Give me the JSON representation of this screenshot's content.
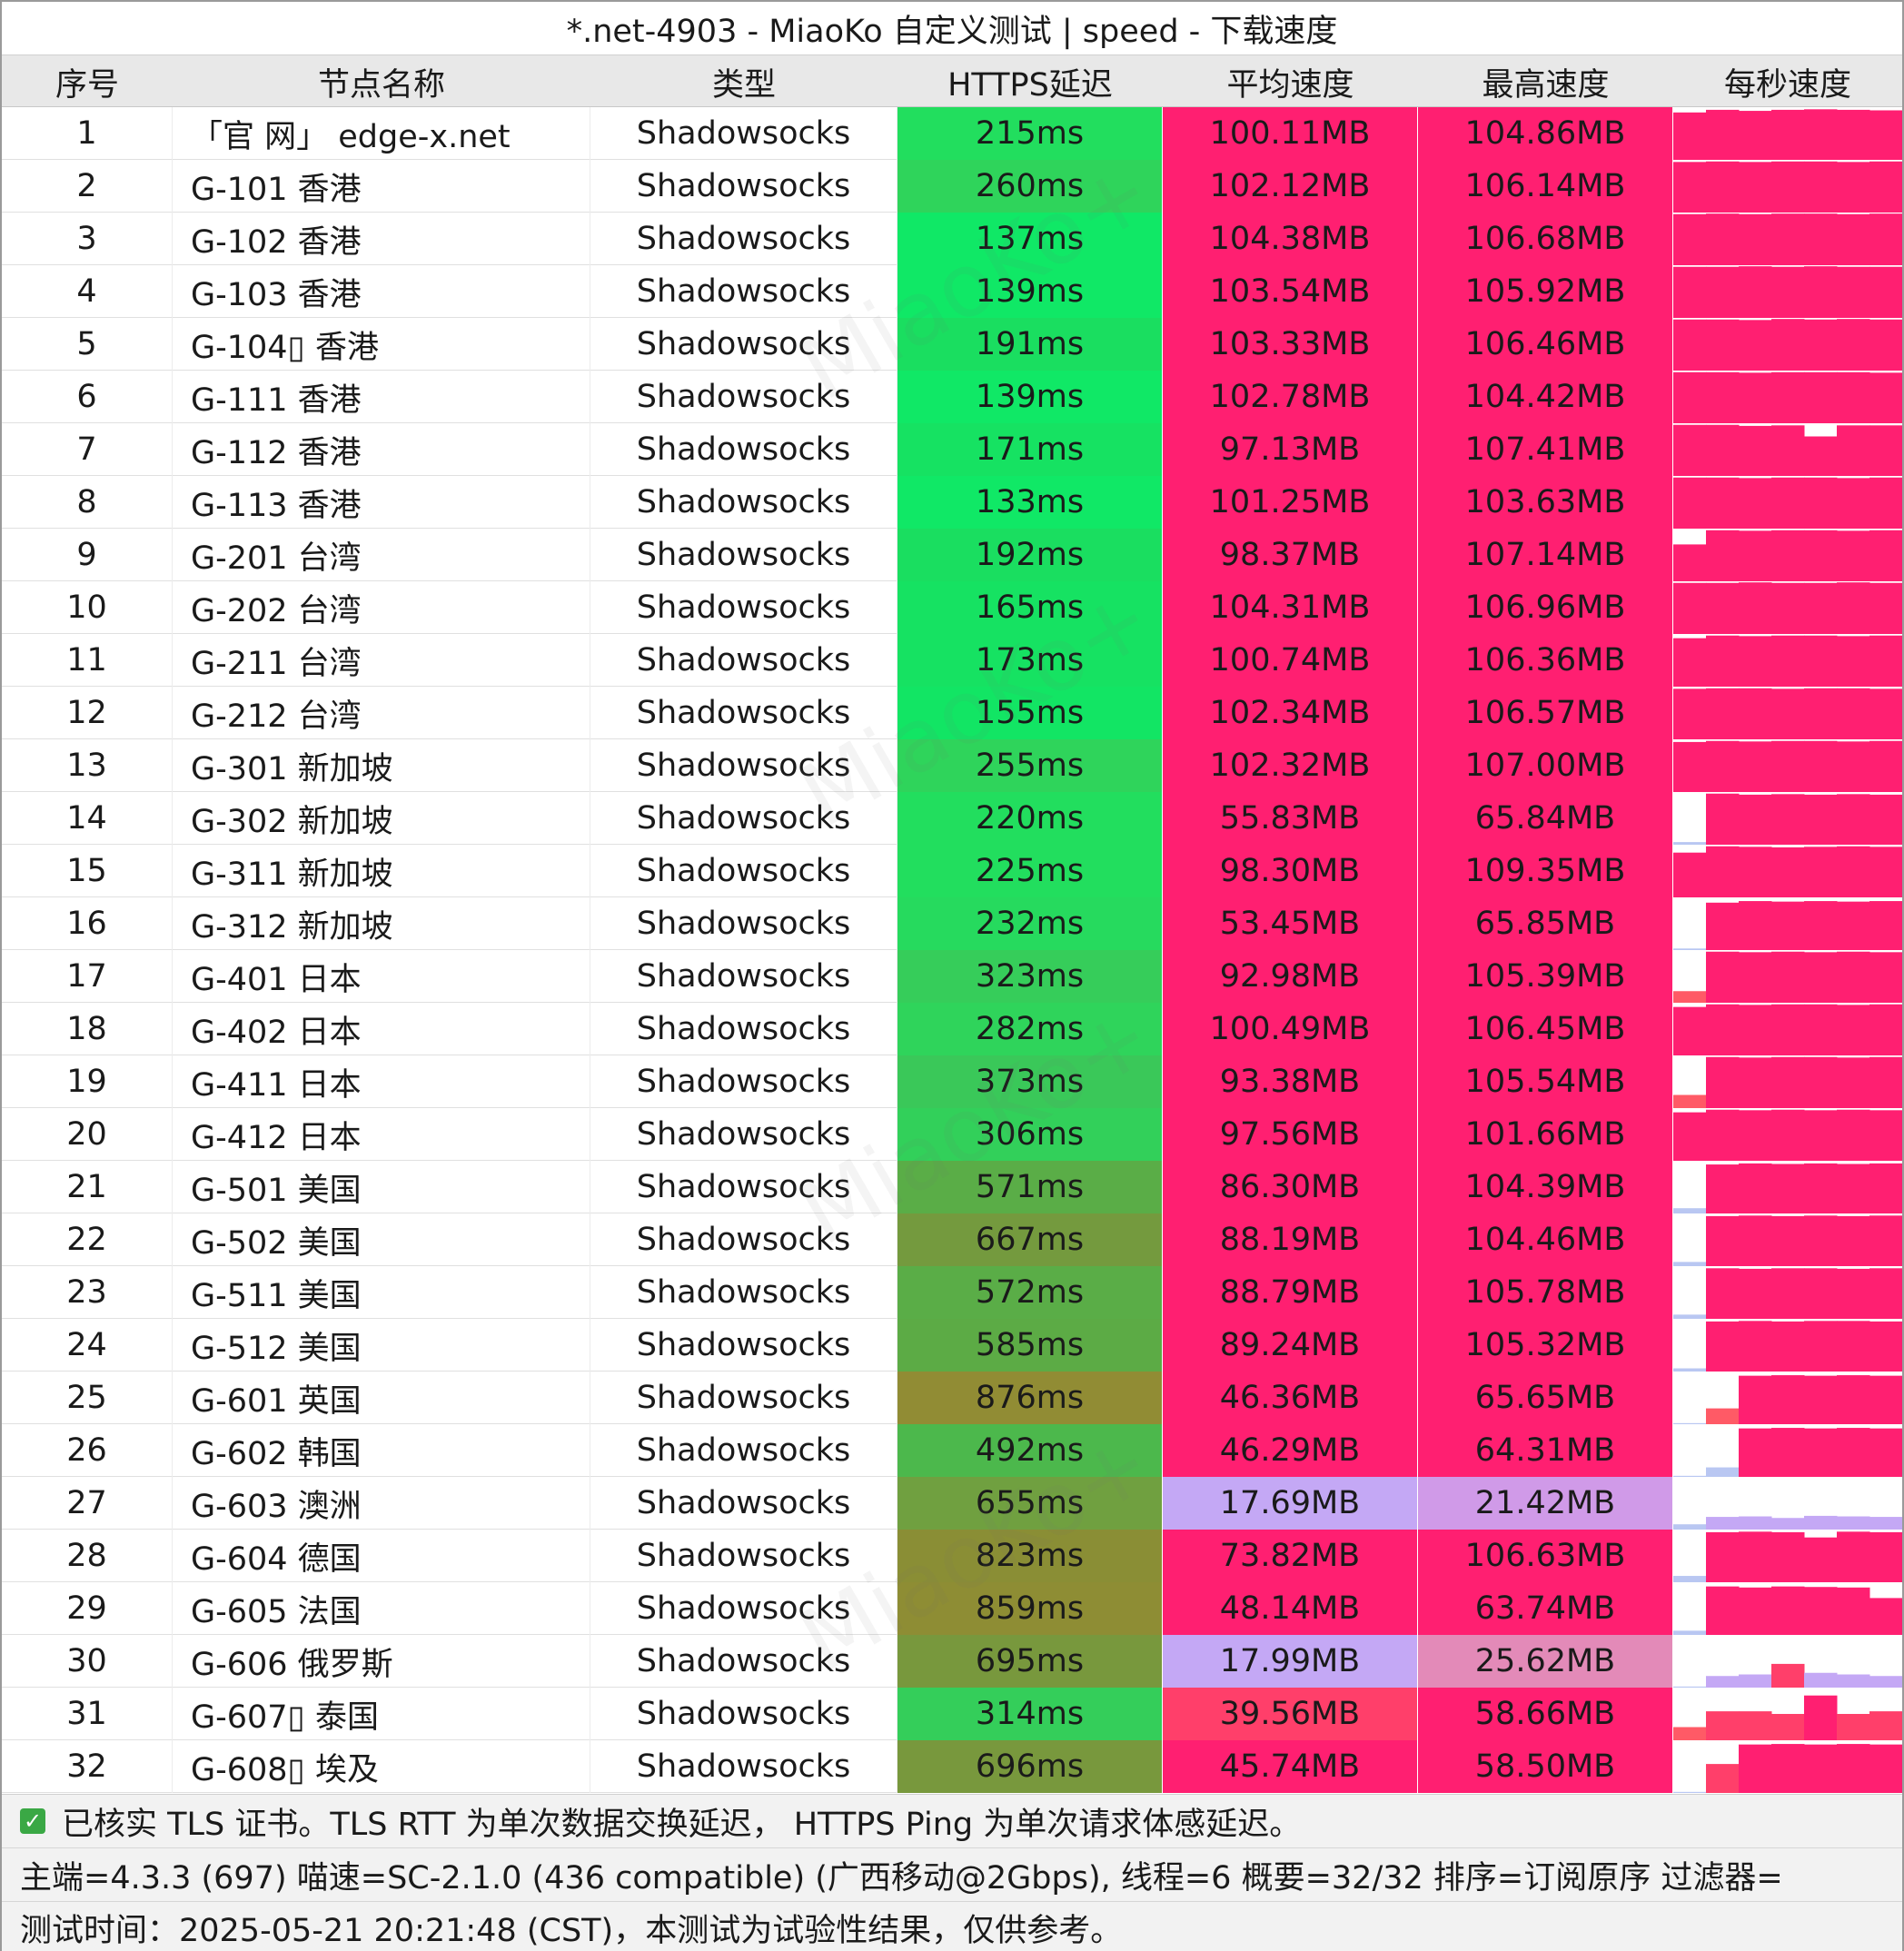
{
  "title": "*.net-4903 - MiaoKo 自定义测试 | speed - 下载速度",
  "watermark": "MiaoKo+",
  "columns": [
    "序号",
    "节点名称",
    "类型",
    "HTTPS延迟",
    "平均速度",
    "最高速度",
    "每秒速度"
  ],
  "colors": {
    "speed_high": "#ff1f71",
    "speed_low": "#c8a6f2",
    "latency_good": "#1bd862",
    "latency_mid": "#4dbb46",
    "latency_bad": "#8c8f33"
  },
  "rows": [
    {
      "id": "1",
      "name": "「官 网」 edge-x.net",
      "type": "Shadowsocks",
      "latency": "215ms",
      "avg": "100.11MB",
      "max": "104.86MB",
      "latency_color": "#22de5e",
      "avg_color": "#ff1f71",
      "max_color": "#ff1f71",
      "sparkline": [
        0.9,
        0.95,
        0.93,
        0.95,
        0.96,
        0.95,
        0.94
      ]
    },
    {
      "id": "2",
      "name": "G-101 香港",
      "type": "Shadowsocks",
      "latency": "260ms",
      "avg": "102.12MB",
      "max": "106.14MB",
      "latency_color": "#2fd45b",
      "avg_color": "#ff1f71",
      "max_color": "#ff1f71",
      "sparkline": [
        0.96,
        0.97,
        0.96,
        0.97,
        0.97,
        0.96,
        0.97
      ]
    },
    {
      "id": "3",
      "name": "G-102 香港",
      "type": "Shadowsocks",
      "latency": "137ms",
      "avg": "104.38MB",
      "max": "106.68MB",
      "latency_color": "#10e866",
      "avg_color": "#ff1f71",
      "max_color": "#ff1f71",
      "sparkline": [
        0.97,
        0.98,
        0.97,
        0.98,
        0.98,
        0.97,
        0.98
      ]
    },
    {
      "id": "4",
      "name": "G-103 香港",
      "type": "Shadowsocks",
      "latency": "139ms",
      "avg": "103.54MB",
      "max": "105.92MB",
      "latency_color": "#10e866",
      "avg_color": "#ff1f71",
      "max_color": "#ff1f71",
      "sparkline": [
        0.97,
        0.97,
        0.98,
        0.97,
        0.98,
        0.97,
        0.97
      ]
    },
    {
      "id": "5",
      "name": "G-104▯ 香港",
      "type": "Shadowsocks",
      "latency": "191ms",
      "avg": "103.33MB",
      "max": "106.46MB",
      "latency_color": "#1ade60",
      "avg_color": "#ff1f71",
      "max_color": "#ff1f71",
      "sparkline": [
        0.97,
        0.97,
        0.96,
        0.98,
        0.97,
        0.98,
        0.97
      ]
    },
    {
      "id": "6",
      "name": "G-111 香港",
      "type": "Shadowsocks",
      "latency": "139ms",
      "avg": "102.78MB",
      "max": "104.42MB",
      "latency_color": "#10e866",
      "avg_color": "#ff1f71",
      "max_color": "#ff1f71",
      "sparkline": [
        0.97,
        0.97,
        0.96,
        0.97,
        0.97,
        0.97,
        0.96
      ]
    },
    {
      "id": "7",
      "name": "G-112 香港",
      "type": "Shadowsocks",
      "latency": "171ms",
      "avg": "97.13MB",
      "max": "107.41MB",
      "latency_color": "#16e262",
      "avg_color": "#ff1f71",
      "max_color": "#ff1f71",
      "sparkline": [
        0.97,
        0.97,
        0.95,
        0.96,
        0.75,
        0.96,
        0.96
      ]
    },
    {
      "id": "8",
      "name": "G-113 香港",
      "type": "Shadowsocks",
      "latency": "133ms",
      "avg": "101.25MB",
      "max": "103.63MB",
      "latency_color": "#10e866",
      "avg_color": "#ff1f71",
      "max_color": "#ff1f71",
      "sparkline": [
        0.97,
        0.97,
        0.96,
        0.97,
        0.97,
        0.96,
        0.97
      ]
    },
    {
      "id": "9",
      "name": "G-201 台湾",
      "type": "Shadowsocks",
      "latency": "192ms",
      "avg": "98.37MB",
      "max": "107.14MB",
      "latency_color": "#1ade60",
      "avg_color": "#ff1f71",
      "max_color": "#ff1f71",
      "sparkline": [
        0.7,
        0.97,
        0.96,
        0.97,
        0.97,
        0.96,
        0.97
      ]
    },
    {
      "id": "10",
      "name": "G-202 台湾",
      "type": "Shadowsocks",
      "latency": "165ms",
      "avg": "104.31MB",
      "max": "106.96MB",
      "latency_color": "#16e262",
      "avg_color": "#ff1f71",
      "max_color": "#ff1f71",
      "sparkline": [
        0.97,
        0.97,
        0.98,
        0.97,
        0.97,
        0.98,
        0.97
      ]
    },
    {
      "id": "11",
      "name": "G-211 台湾",
      "type": "Shadowsocks",
      "latency": "173ms",
      "avg": "100.74MB",
      "max": "106.36MB",
      "latency_color": "#16e262",
      "avg_color": "#ff1f71",
      "max_color": "#ff1f71",
      "sparkline": [
        0.92,
        0.97,
        0.96,
        0.97,
        0.97,
        0.96,
        0.97
      ]
    },
    {
      "id": "12",
      "name": "G-212 台湾",
      "type": "Shadowsocks",
      "latency": "155ms",
      "avg": "102.34MB",
      "max": "106.57MB",
      "latency_color": "#12e564",
      "avg_color": "#ff1f71",
      "max_color": "#ff1f71",
      "sparkline": [
        0.96,
        0.97,
        0.97,
        0.96,
        0.97,
        0.97,
        0.96
      ]
    },
    {
      "id": "13",
      "name": "G-301 新加坡",
      "type": "Shadowsocks",
      "latency": "255ms",
      "avg": "102.32MB",
      "max": "107.00MB",
      "latency_color": "#2fd45b",
      "avg_color": "#ff1f71",
      "max_color": "#ff1f71",
      "sparkline": [
        0.95,
        0.97,
        0.96,
        0.97,
        0.97,
        0.96,
        0.97
      ]
    },
    {
      "id": "14",
      "name": "G-302 新加坡",
      "type": "Shadowsocks",
      "latency": "220ms",
      "avg": "55.83MB",
      "max": "65.84MB",
      "latency_color": "#22de5e",
      "avg_color": "#ff1f71",
      "max_color": "#ff1f71",
      "sparkline": [
        0.05,
        0.97,
        0.95,
        0.96,
        0.95,
        0.96,
        0.95
      ]
    },
    {
      "id": "15",
      "name": "G-311 新加坡",
      "type": "Shadowsocks",
      "latency": "225ms",
      "avg": "98.30MB",
      "max": "109.35MB",
      "latency_color": "#22de5e",
      "avg_color": "#ff1f71",
      "max_color": "#ff1f71",
      "sparkline": [
        0.85,
        0.97,
        0.96,
        0.95,
        0.96,
        0.97,
        0.96
      ]
    },
    {
      "id": "16",
      "name": "G-312 新加坡",
      "type": "Shadowsocks",
      "latency": "232ms",
      "avg": "53.45MB",
      "max": "65.85MB",
      "latency_color": "#26da5e",
      "avg_color": "#ff1f71",
      "max_color": "#ff1f71",
      "sparkline": [
        0.03,
        0.9,
        0.93,
        0.92,
        0.93,
        0.92,
        0.93
      ]
    },
    {
      "id": "17",
      "name": "G-401 日本",
      "type": "Shadowsocks",
      "latency": "323ms",
      "avg": "92.98MB",
      "max": "105.39MB",
      "latency_color": "#36cd5a",
      "avg_color": "#ff1f71",
      "max_color": "#ff1f71",
      "sparkline": [
        0.22,
        0.97,
        0.96,
        0.97,
        0.96,
        0.97,
        0.96
      ]
    },
    {
      "id": "18",
      "name": "G-402 日本",
      "type": "Shadowsocks",
      "latency": "282ms",
      "avg": "100.49MB",
      "max": "106.45MB",
      "latency_color": "#2fd45b",
      "avg_color": "#ff1f71",
      "max_color": "#ff1f71",
      "sparkline": [
        0.92,
        0.97,
        0.96,
        0.97,
        0.97,
        0.96,
        0.97
      ]
    },
    {
      "id": "19",
      "name": "G-411 日本",
      "type": "Shadowsocks",
      "latency": "373ms",
      "avg": "93.38MB",
      "max": "105.54MB",
      "latency_color": "#3ac859",
      "avg_color": "#ff1f71",
      "max_color": "#ff1f71",
      "sparkline": [
        0.25,
        0.97,
        0.96,
        0.97,
        0.97,
        0.96,
        0.97
      ]
    },
    {
      "id": "20",
      "name": "G-412 日本",
      "type": "Shadowsocks",
      "latency": "306ms",
      "avg": "97.56MB",
      "max": "101.66MB",
      "latency_color": "#32d05a",
      "avg_color": "#ff1f71",
      "max_color": "#ff1f71",
      "sparkline": [
        0.92,
        0.97,
        0.96,
        0.97,
        0.96,
        0.97,
        0.96
      ]
    },
    {
      "id": "21",
      "name": "G-501 美国",
      "type": "Shadowsocks",
      "latency": "571ms",
      "avg": "86.30MB",
      "max": "104.39MB",
      "latency_color": "#5aad47",
      "avg_color": "#ff1f71",
      "max_color": "#ff1f71",
      "sparkline": [
        0.1,
        0.93,
        0.95,
        0.94,
        0.95,
        0.94,
        0.95
      ]
    },
    {
      "id": "22",
      "name": "G-502 美国",
      "type": "Shadowsocks",
      "latency": "667ms",
      "avg": "88.19MB",
      "max": "104.46MB",
      "latency_color": "#749a3e",
      "avg_color": "#ff1f71",
      "max_color": "#ff1f71",
      "sparkline": [
        0.08,
        0.95,
        0.96,
        0.95,
        0.96,
        0.95,
        0.96
      ]
    },
    {
      "id": "23",
      "name": "G-511 美国",
      "type": "Shadowsocks",
      "latency": "572ms",
      "avg": "88.79MB",
      "max": "105.78MB",
      "latency_color": "#5aad47",
      "avg_color": "#ff1f71",
      "max_color": "#ff1f71",
      "sparkline": [
        0.08,
        0.96,
        0.95,
        0.96,
        0.96,
        0.95,
        0.96
      ]
    },
    {
      "id": "24",
      "name": "G-512 美国",
      "type": "Shadowsocks",
      "latency": "585ms",
      "avg": "89.24MB",
      "max": "105.32MB",
      "latency_color": "#5cab45",
      "avg_color": "#ff1f71",
      "max_color": "#ff1f71",
      "sparkline": [
        0.06,
        0.95,
        0.96,
        0.95,
        0.96,
        0.96,
        0.95
      ]
    },
    {
      "id": "25",
      "name": "G-601 英国",
      "type": "Shadowsocks",
      "latency": "876ms",
      "avg": "46.36MB",
      "max": "65.65MB",
      "latency_color": "#918c34",
      "avg_color": "#ff1f71",
      "max_color": "#ff1f71",
      "sparkline": [
        0.02,
        0.3,
        0.92,
        0.93,
        0.92,
        0.93,
        0.92
      ]
    },
    {
      "id": "26",
      "name": "G-602 韩国",
      "type": "Shadowsocks",
      "latency": "492ms",
      "avg": "46.29MB",
      "max": "64.31MB",
      "latency_color": "#4cb84c",
      "avg_color": "#ff1f71",
      "max_color": "#ff1f71",
      "sparkline": [
        0.02,
        0.18,
        0.92,
        0.93,
        0.92,
        0.93,
        0.92
      ]
    },
    {
      "id": "27",
      "name": "G-603 澳洲",
      "type": "Shadowsocks",
      "latency": "655ms",
      "avg": "17.69MB",
      "max": "21.42MB",
      "latency_color": "#70a040",
      "avg_color": "#c4a8f5",
      "max_color": "#d09ae8",
      "sparkline": [
        0.1,
        0.24,
        0.25,
        0.22,
        0.26,
        0.25,
        0.24
      ]
    },
    {
      "id": "28",
      "name": "G-604 德国",
      "type": "Shadowsocks",
      "latency": "823ms",
      "avg": "73.82MB",
      "max": "106.63MB",
      "latency_color": "#8a8e35",
      "avg_color": "#ff1f71",
      "max_color": "#ff1f71",
      "sparkline": [
        0.12,
        0.95,
        0.96,
        0.95,
        0.85,
        0.96,
        0.95
      ]
    },
    {
      "id": "29",
      "name": "G-605 法国",
      "type": "Shadowsocks",
      "latency": "859ms",
      "avg": "48.14MB",
      "max": "63.74MB",
      "latency_color": "#8e8d34",
      "avg_color": "#ff1f71",
      "max_color": "#ff1f71",
      "sparkline": [
        0.08,
        0.92,
        0.9,
        0.92,
        0.91,
        0.9,
        0.7
      ]
    },
    {
      "id": "30",
      "name": "G-606 俄罗斯",
      "type": "Shadowsocks",
      "latency": "695ms",
      "avg": "17.99MB",
      "max": "25.62MB",
      "latency_color": "#78983d",
      "avg_color": "#c4a8f5",
      "max_color": "#e38ab8",
      "sparkline": [
        0.02,
        0.22,
        0.25,
        0.45,
        0.28,
        0.25,
        0.22
      ]
    },
    {
      "id": "31",
      "name": "G-607▯ 泰国",
      "type": "Shadowsocks",
      "latency": "314ms",
      "avg": "39.56MB",
      "max": "58.66MB",
      "latency_color": "#34ce5a",
      "avg_color": "#ff3f6a",
      "max_color": "#ff1f71",
      "sparkline": [
        0.25,
        0.55,
        0.55,
        0.5,
        0.85,
        0.5,
        0.55
      ]
    },
    {
      "id": "32",
      "name": "G-608▯ 埃及",
      "type": "Shadowsocks",
      "latency": "696ms",
      "avg": "45.74MB",
      "max": "58.50MB",
      "latency_color": "#78983d",
      "avg_color": "#ff1f71",
      "max_color": "#ff1f71",
      "sparkline": [
        0.02,
        0.55,
        0.92,
        0.93,
        0.92,
        0.93,
        0.92
      ]
    }
  ],
  "footer": {
    "line1": "已核实 TLS 证书。TLS RTT 为单次数据交换延迟， HTTPS Ping 为单次请求体感延迟。",
    "line2": "主端=4.3.3 (697) 喵速=SC-2.1.0 (436 compatible) (广西移动@2Gbps), 线程=6 概要=32/32 排序=订阅原序 过滤器=",
    "line3": "测试时间：2025-05-21 20:21:48 (CST)，本测试为试验性结果，仅供参考。"
  }
}
